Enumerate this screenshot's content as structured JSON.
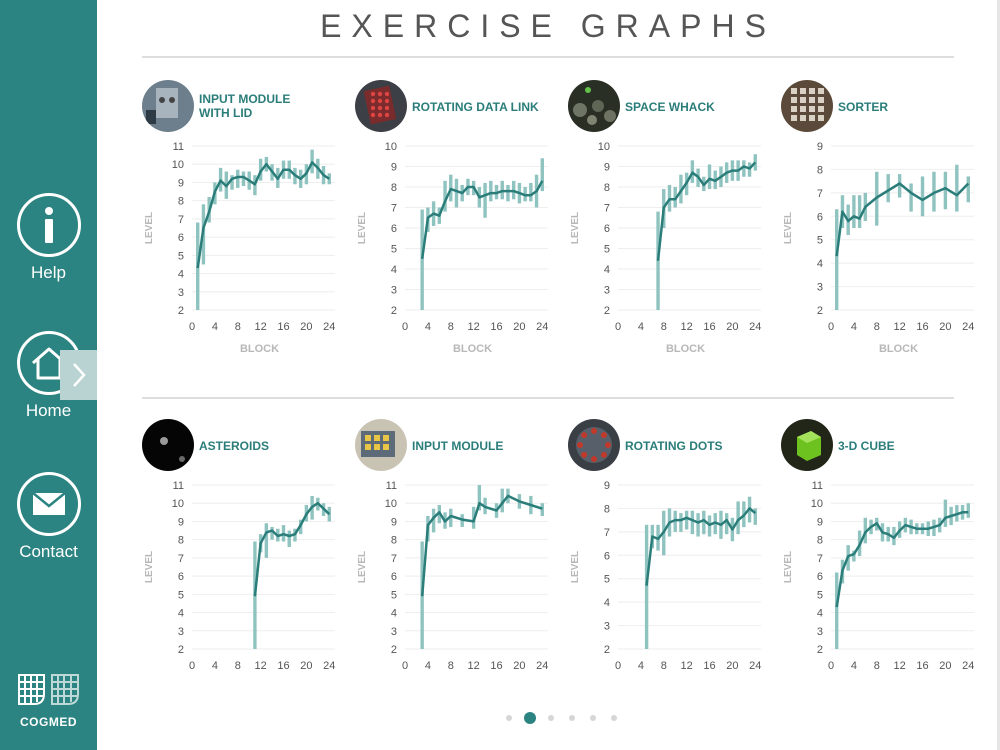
{
  "header": {
    "title": "EXERCISE GRAPHS"
  },
  "sidebar": {
    "help_label": "Help",
    "home_label": "Home",
    "contact_label": "Contact",
    "logo_text": "COGMED"
  },
  "colors": {
    "teal": "#2b8481",
    "line": "#2b7d7a",
    "bar": "#8fc3c0",
    "axis": "#9a9a9a"
  },
  "pager": {
    "count": 6,
    "active": 1
  },
  "cards": [
    {
      "title_line1": "INPUT MODULE",
      "title_line2": "WITH LID",
      "xlabel": "BLOCK",
      "ylabel": "LEVEL",
      "thumb_icon": "input-module-lid-thumb"
    },
    {
      "title_line1": "ROTATING DATA LINK",
      "title_line2": "",
      "xlabel": "BLOCK",
      "ylabel": "LEVEL",
      "thumb_icon": "rotating-data-link-thumb"
    },
    {
      "title_line1": "SPACE WHACK",
      "title_line2": "",
      "xlabel": "BLOCK",
      "ylabel": "LEVEL",
      "thumb_icon": "space-whack-thumb"
    },
    {
      "title_line1": "SORTER",
      "title_line2": "",
      "xlabel": "BLOCK",
      "ylabel": "LEVEL",
      "thumb_icon": "sorter-thumb"
    },
    {
      "title_line1": "ASTEROIDS",
      "title_line2": "",
      "xlabel": "",
      "ylabel": "LEVEL",
      "thumb_icon": "asteroids-thumb"
    },
    {
      "title_line1": "INPUT MODULE",
      "title_line2": "",
      "xlabel": "",
      "ylabel": "LEVEL",
      "thumb_icon": "input-module-thumb"
    },
    {
      "title_line1": "ROTATING DOTS",
      "title_line2": "",
      "xlabel": "",
      "ylabel": "LEVEL",
      "thumb_icon": "rotating-dots-thumb"
    },
    {
      "title_line1": "3-D CUBE",
      "title_line2": "",
      "xlabel": "",
      "ylabel": "LEVEL",
      "thumb_icon": "3d-cube-thumb"
    }
  ],
  "chart_data": [
    {
      "type": "line",
      "xlim": [
        0,
        25
      ],
      "ylim": [
        2,
        11
      ],
      "yticks": [
        2,
        3,
        4,
        5,
        6,
        7,
        8,
        9,
        10,
        11
      ],
      "xticks": [
        0,
        4,
        8,
        12,
        16,
        20,
        24
      ],
      "x": [
        1,
        2,
        3,
        4,
        5,
        6,
        7,
        8,
        9,
        10,
        11,
        12,
        13,
        14,
        15,
        16,
        17,
        18,
        19,
        20,
        21,
        22,
        23,
        24
      ],
      "y": [
        4.3,
        6.5,
        7.4,
        8.5,
        9.1,
        8.8,
        9.2,
        9.3,
        9.3,
        9.1,
        8.9,
        9.6,
        10.0,
        9.6,
        9.2,
        9.7,
        9.7,
        9.4,
        9.2,
        9.5,
        10.1,
        9.8,
        9.4,
        9.2
      ],
      "range_low": [
        2.0,
        4.5,
        6.8,
        7.8,
        8.5,
        8.1,
        8.6,
        8.7,
        8.8,
        8.6,
        8.3,
        9.1,
        9.6,
        9.1,
        8.7,
        9.2,
        9.2,
        8.9,
        8.7,
        8.9,
        9.5,
        9.2,
        8.9,
        8.9
      ],
      "range_high": [
        6.8,
        7.8,
        8.2,
        9.0,
        9.8,
        9.6,
        9.4,
        9.7,
        9.6,
        9.6,
        9.4,
        10.3,
        10.4,
        10.0,
        9.8,
        10.2,
        10.2,
        9.8,
        9.7,
        10.0,
        10.8,
        10.3,
        9.9,
        9.5
      ]
    },
    {
      "type": "line",
      "xlim": [
        0,
        25
      ],
      "ylim": [
        2,
        10
      ],
      "yticks": [
        2,
        3,
        4,
        5,
        6,
        7,
        8,
        9,
        10
      ],
      "xticks": [
        0,
        4,
        8,
        12,
        16,
        20,
        24
      ],
      "x": [
        3,
        4,
        5,
        6,
        7,
        8,
        9,
        10,
        11,
        12,
        13,
        14,
        15,
        16,
        17,
        18,
        19,
        20,
        21,
        22,
        23,
        24
      ],
      "y": [
        4.5,
        6.5,
        6.7,
        6.6,
        7.3,
        7.9,
        7.8,
        7.7,
        8.0,
        8.0,
        7.5,
        7.6,
        7.7,
        7.7,
        7.8,
        7.8,
        7.8,
        7.7,
        7.6,
        7.6,
        7.8,
        8.3
      ],
      "range_low": [
        2.0,
        5.8,
        6.1,
        6.2,
        6.8,
        7.3,
        7.0,
        7.3,
        7.6,
        7.6,
        7.0,
        6.5,
        7.3,
        7.4,
        7.4,
        7.3,
        7.4,
        7.2,
        7.3,
        7.3,
        7.0,
        7.8
      ],
      "range_high": [
        6.9,
        7.0,
        7.3,
        7.0,
        8.3,
        8.6,
        8.4,
        8.1,
        8.4,
        8.3,
        8.0,
        8.2,
        8.3,
        8.1,
        8.3,
        8.1,
        8.3,
        8.2,
        8.0,
        8.2,
        8.6,
        9.4
      ]
    },
    {
      "type": "line",
      "xlim": [
        0,
        25
      ],
      "ylim": [
        2,
        10
      ],
      "yticks": [
        2,
        3,
        4,
        5,
        6,
        7,
        8,
        9,
        10
      ],
      "xticks": [
        0,
        4,
        8,
        12,
        16,
        20,
        24
      ],
      "x": [
        7,
        8,
        9,
        10,
        11,
        12,
        13,
        14,
        15,
        16,
        17,
        18,
        19,
        20,
        21,
        22,
        23,
        24
      ],
      "y": [
        4.4,
        7.0,
        7.4,
        7.4,
        7.8,
        8.2,
        8.7,
        8.5,
        8.1,
        8.4,
        8.3,
        8.5,
        8.7,
        8.8,
        8.8,
        9.0,
        8.9,
        9.2
      ],
      "range_low": [
        2.0,
        6.0,
        6.8,
        7.0,
        7.2,
        7.6,
        8.2,
        8.0,
        7.8,
        7.9,
        7.9,
        8.0,
        8.2,
        8.3,
        8.3,
        8.5,
        8.5,
        8.8
      ],
      "range_high": [
        6.8,
        7.9,
        8.1,
        8.0,
        8.6,
        8.7,
        9.3,
        8.9,
        8.5,
        9.1,
        8.8,
        9.0,
        9.2,
        9.3,
        9.3,
        9.3,
        9.2,
        9.6
      ]
    },
    {
      "type": "line",
      "xlim": [
        0,
        25
      ],
      "ylim": [
        2,
        9
      ],
      "yticks": [
        2,
        3,
        4,
        5,
        6,
        7,
        8,
        9
      ],
      "xticks": [
        0,
        4,
        8,
        12,
        16,
        20,
        24
      ],
      "x": [
        1,
        2,
        3,
        4,
        5,
        6,
        8,
        10,
        12,
        14,
        16,
        18,
        20,
        22,
        24
      ],
      "y": [
        4.3,
        6.2,
        5.8,
        6.0,
        5.9,
        6.4,
        6.8,
        7.1,
        7.4,
        7.0,
        6.7,
        7.0,
        7.2,
        6.9,
        7.4
      ],
      "range_low": [
        2.0,
        5.5,
        5.2,
        5.5,
        5.5,
        5.8,
        5.6,
        6.6,
        6.8,
        6.2,
        6.0,
        6.2,
        6.3,
        6.2,
        6.6
      ],
      "range_high": [
        6.3,
        6.9,
        6.5,
        6.9,
        6.9,
        7.0,
        7.9,
        7.8,
        7.8,
        7.4,
        7.7,
        7.9,
        7.9,
        8.2,
        7.7
      ]
    },
    {
      "type": "line",
      "xlim": [
        0,
        25
      ],
      "ylim": [
        2,
        11
      ],
      "yticks": [
        2,
        3,
        4,
        5,
        6,
        7,
        8,
        9,
        10,
        11
      ],
      "xticks": [
        0,
        4,
        8,
        12,
        16,
        20,
        24
      ],
      "x": [
        11,
        12,
        13,
        14,
        15,
        16,
        17,
        18,
        19,
        20,
        21,
        22,
        23,
        24
      ],
      "y": [
        4.9,
        7.8,
        8.4,
        8.5,
        8.2,
        8.3,
        8.2,
        8.3,
        8.8,
        9.4,
        9.8,
        10.0,
        9.7,
        9.4
      ],
      "range_low": [
        2.0,
        7.3,
        7.0,
        8.0,
        7.9,
        7.9,
        7.6,
        7.9,
        8.3,
        9.0,
        9.1,
        9.6,
        9.3,
        9.0
      ],
      "range_high": [
        7.9,
        8.3,
        8.9,
        8.7,
        8.6,
        8.8,
        8.5,
        8.6,
        9.1,
        9.9,
        10.4,
        10.3,
        10.0,
        9.8
      ]
    },
    {
      "type": "line",
      "xlim": [
        0,
        25
      ],
      "ylim": [
        2,
        11
      ],
      "yticks": [
        2,
        3,
        4,
        5,
        6,
        7,
        8,
        9,
        10,
        11
      ],
      "xticks": [
        0,
        4,
        8,
        12,
        16,
        20,
        24
      ],
      "x": [
        3,
        4,
        5,
        6,
        7,
        8,
        10,
        12,
        13,
        14,
        16,
        17,
        18,
        20,
        22,
        24
      ],
      "y": [
        4.9,
        8.8,
        9.2,
        9.5,
        9.0,
        9.3,
        9.1,
        9.0,
        10.0,
        9.8,
        9.6,
        10.0,
        10.4,
        10.1,
        9.9,
        9.7
      ],
      "range_low": [
        2.0,
        7.9,
        8.4,
        8.9,
        8.6,
        8.7,
        8.7,
        8.6,
        9.6,
        9.4,
        9.2,
        9.5,
        10.0,
        9.7,
        9.4,
        9.3
      ],
      "range_high": [
        7.9,
        9.3,
        9.7,
        9.9,
        9.5,
        9.7,
        9.4,
        9.8,
        11.0,
        10.3,
        10.0,
        10.8,
        10.8,
        10.5,
        10.4,
        10.0
      ]
    },
    {
      "type": "line",
      "xlim": [
        0,
        25
      ],
      "ylim": [
        2,
        9
      ],
      "yticks": [
        2,
        3,
        4,
        5,
        6,
        7,
        8,
        9
      ],
      "xticks": [
        0,
        4,
        8,
        12,
        16,
        20,
        24
      ],
      "x": [
        5,
        6,
        7,
        8,
        9,
        10,
        11,
        12,
        13,
        14,
        15,
        16,
        17,
        18,
        19,
        20,
        21,
        22,
        23,
        24
      ],
      "y": [
        4.7,
        6.8,
        6.7,
        7.0,
        7.4,
        7.5,
        7.5,
        7.6,
        7.5,
        7.4,
        7.5,
        7.3,
        7.4,
        7.3,
        7.5,
        7.1,
        7.5,
        7.7,
        8.0,
        7.8
      ],
      "range_low": [
        2.0,
        6.3,
        6.2,
        6.0,
        6.8,
        7.0,
        7.0,
        7.1,
        6.9,
        6.8,
        6.9,
        6.8,
        6.9,
        6.7,
        6.9,
        6.6,
        6.9,
        7.2,
        7.4,
        7.3
      ],
      "range_high": [
        7.3,
        7.3,
        7.3,
        7.9,
        8.0,
        7.9,
        7.8,
        7.9,
        7.9,
        7.8,
        7.9,
        7.7,
        7.8,
        7.9,
        7.8,
        7.6,
        8.3,
        8.3,
        8.5,
        8.0
      ]
    },
    {
      "type": "line",
      "xlim": [
        0,
        25
      ],
      "ylim": [
        2,
        11
      ],
      "yticks": [
        2,
        3,
        4,
        5,
        6,
        7,
        8,
        9,
        10,
        11
      ],
      "xticks": [
        0,
        4,
        8,
        12,
        16,
        20,
        24
      ],
      "x": [
        1,
        2,
        3,
        4,
        5,
        6,
        7,
        8,
        9,
        10,
        11,
        12,
        13,
        14,
        15,
        16,
        17,
        18,
        19,
        20,
        21,
        22,
        23,
        24
      ],
      "y": [
        4.3,
        6.3,
        7.1,
        7.2,
        7.7,
        8.4,
        8.7,
        8.9,
        8.4,
        8.3,
        8.1,
        8.5,
        8.8,
        8.7,
        8.6,
        8.6,
        8.6,
        8.7,
        8.8,
        9.2,
        9.3,
        9.4,
        9.5,
        9.5
      ],
      "range_low": [
        2.0,
        5.6,
        6.3,
        6.8,
        7.1,
        7.8,
        8.3,
        8.5,
        7.9,
        7.9,
        7.7,
        8.1,
        8.4,
        8.3,
        8.3,
        8.3,
        8.2,
        8.2,
        8.4,
        8.7,
        8.8,
        9.0,
        9.1,
        9.2
      ],
      "range_high": [
        6.2,
        6.9,
        7.7,
        7.4,
        8.5,
        9.2,
        9.1,
        9.2,
        8.9,
        8.7,
        8.7,
        9.0,
        9.2,
        9.1,
        8.9,
        8.9,
        9.0,
        9.1,
        9.2,
        10.2,
        9.8,
        9.9,
        9.9,
        10.0
      ]
    }
  ]
}
